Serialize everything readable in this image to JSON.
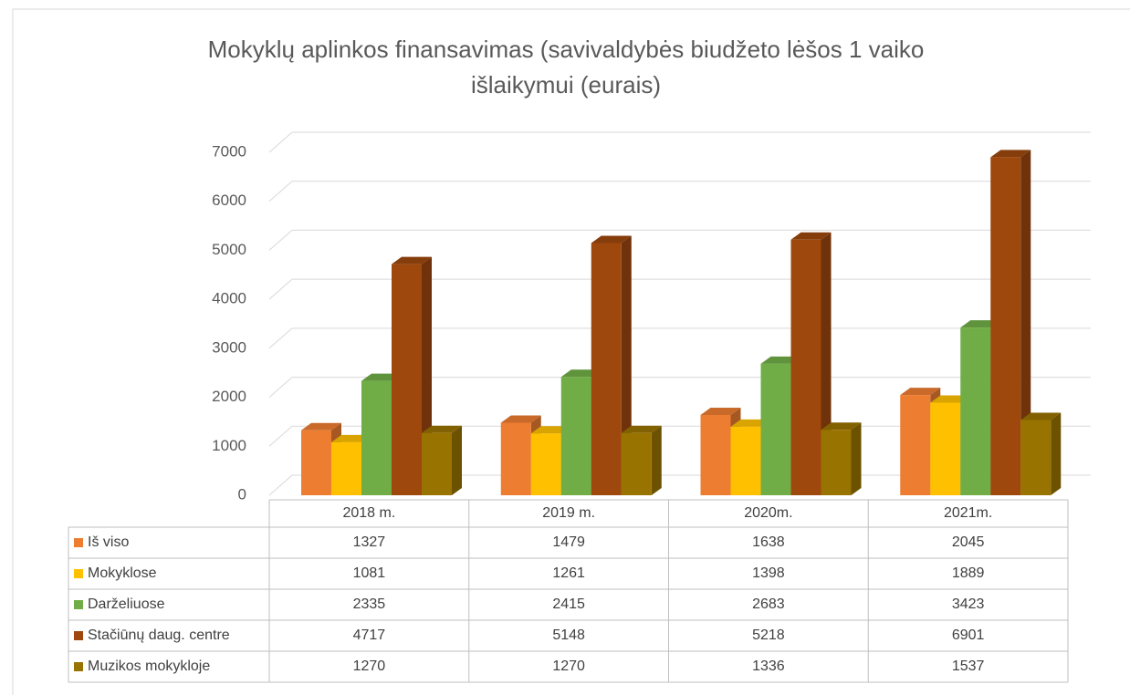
{
  "chart_data": {
    "type": "bar3d",
    "title_lines": [
      "Mokyklų aplinkos finansavimas (savivaldybės biudžeto lėšos 1 vaiko",
      "išlaikymui (eurais)"
    ],
    "categories": [
      "2018 m.",
      "2019 m.",
      "2020m.",
      "2021m."
    ],
    "series": [
      {
        "name": "Iš viso",
        "color": "#ed7d31",
        "values": [
          1327,
          1479,
          1638,
          2045
        ]
      },
      {
        "name": "Mokyklose",
        "color": "#ffc000",
        "values": [
          1081,
          1261,
          1398,
          1889
        ]
      },
      {
        "name": "Darželiuose",
        "color": "#70ad47",
        "values": [
          2335,
          2415,
          2683,
          3423
        ]
      },
      {
        "name": "Stačiūnų daug. centre",
        "color": "#9e480e",
        "values": [
          4717,
          5148,
          5218,
          6901
        ]
      },
      {
        "name": "Muzikos mokykloje",
        "color": "#997300",
        "values": [
          1270,
          1270,
          1336,
          1537
        ]
      }
    ],
    "ylim": [
      0,
      7000
    ],
    "yticks": [
      0,
      1000,
      2000,
      3000,
      4000,
      5000,
      6000,
      7000
    ],
    "grid": true,
    "data_table": true
  }
}
